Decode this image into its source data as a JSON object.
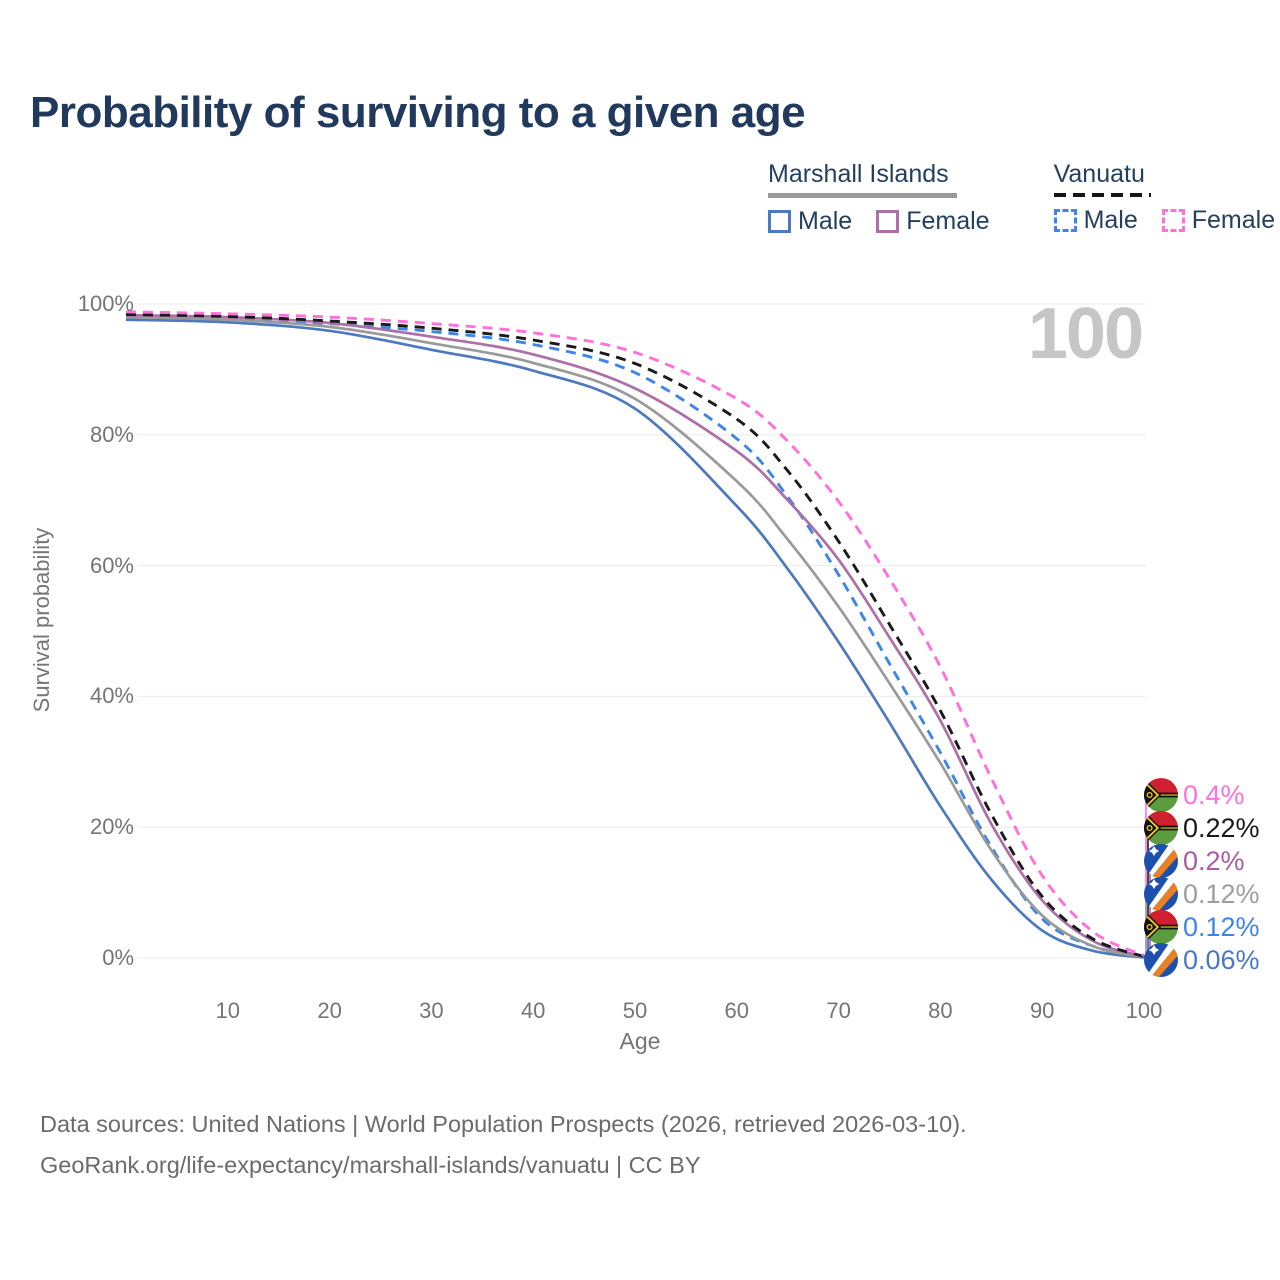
{
  "title": "Probability of surviving to a given age",
  "watermark": "100",
  "legend": {
    "groups": [
      {
        "label": "Marshall Islands",
        "line_style": "solid",
        "underline_color": "#9a9a9a",
        "items": [
          {
            "label": "Male",
            "color": "#4d79c0",
            "dashed": false
          },
          {
            "label": "Female",
            "color": "#ac6fa6",
            "dashed": false
          }
        ]
      },
      {
        "label": "Vanuatu",
        "line_style": "dashed",
        "underline_color": "#151515",
        "items": [
          {
            "label": "Male",
            "color": "#3c86ea",
            "dashed": true
          },
          {
            "label": "Female",
            "color": "#ff70dd",
            "dashed": true
          }
        ]
      }
    ]
  },
  "y_axis": {
    "label": "Survival probability",
    "ticks": [
      {
        "value": 0,
        "label": "0%"
      },
      {
        "value": 20,
        "label": "20%"
      },
      {
        "value": 40,
        "label": "40%"
      },
      {
        "value": 60,
        "label": "60%"
      },
      {
        "value": 80,
        "label": "80%"
      },
      {
        "value": 100,
        "label": "100%"
      }
    ]
  },
  "x_axis": {
    "label": "Age",
    "ticks": [
      {
        "value": 10,
        "label": "10"
      },
      {
        "value": 20,
        "label": "20"
      },
      {
        "value": 30,
        "label": "30"
      },
      {
        "value": 40,
        "label": "40"
      },
      {
        "value": 50,
        "label": "50"
      },
      {
        "value": 60,
        "label": "60"
      },
      {
        "value": 70,
        "label": "70"
      },
      {
        "value": 80,
        "label": "80"
      },
      {
        "value": 90,
        "label": "90"
      },
      {
        "value": 100,
        "label": "100"
      }
    ]
  },
  "end_labels": [
    {
      "value": "0.4%",
      "flag": "vanuatu",
      "color": "#ff70dd"
    },
    {
      "value": "0.22%",
      "flag": "vanuatu",
      "color": "#1a1a1a"
    },
    {
      "value": "0.2%",
      "flag": "marshall-islands",
      "color": "#ab5ba1"
    },
    {
      "value": "0.12%",
      "flag": "marshall-islands",
      "color": "#9e9e9e"
    },
    {
      "value": "0.12%",
      "flag": "vanuatu",
      "color": "#3c86ea"
    },
    {
      "value": "0.06%",
      "flag": "marshall-islands",
      "color": "#4a77c8"
    }
  ],
  "footer": {
    "line1": "Data sources: United Nations | World Population Prospects (2026, retrieved 2026-03-10).",
    "line2": "GeoRank.org/life-expectancy/marshall-islands/vanuatu | CC BY"
  },
  "chart_data": {
    "type": "line",
    "title": "Probability of surviving to a given age",
    "xlabel": "Age",
    "ylabel": "Survival probability",
    "xlim": [
      0,
      100
    ],
    "ylim": [
      0,
      100
    ],
    "grid": true,
    "legend_position": "top-right",
    "x": [
      0,
      10,
      20,
      30,
      40,
      50,
      60,
      65,
      70,
      75,
      80,
      85,
      90,
      95,
      100
    ],
    "series": [
      {
        "name": "Vanuatu Female",
        "color": "#ff70dd",
        "dashed": true,
        "end_label": "0.4%",
        "values": [
          98.8,
          98.5,
          98.0,
          97.0,
          95.6,
          92.6,
          85.5,
          79.0,
          69.8,
          58.0,
          44.5,
          27.5,
          12.6,
          4.0,
          0.4
        ]
      },
      {
        "name": "Vanuatu Both sexes",
        "color": "#1a1a1a",
        "dashed": true,
        "end_label": "0.22%",
        "values": [
          98.4,
          98.1,
          97.4,
          96.3,
          94.5,
          90.9,
          82.4,
          74.5,
          63.7,
          51.0,
          37.8,
          22.0,
          9.4,
          2.9,
          0.22
        ]
      },
      {
        "name": "Marshall Islands Female",
        "color": "#ac6fa6",
        "dashed": false,
        "end_label": "0.2%",
        "values": [
          98.3,
          98.0,
          97.1,
          95.0,
          92.3,
          87.1,
          77.5,
          70.0,
          60.9,
          49.0,
          36.3,
          20.5,
          8.8,
          2.6,
          0.2
        ]
      },
      {
        "name": "Marshall Islands Both sexes",
        "color": "#9a9a9a",
        "dashed": false,
        "end_label": "0.12%",
        "values": [
          98.0,
          97.6,
          96.5,
          94.0,
          91.0,
          85.5,
          72.9,
          64.0,
          53.7,
          42.0,
          29.8,
          16.5,
          6.5,
          1.8,
          0.12
        ]
      },
      {
        "name": "Vanuatu Male",
        "color": "#3c86ea",
        "dashed": true,
        "end_label": "0.12%",
        "values": [
          98.1,
          97.8,
          97.0,
          95.8,
          93.8,
          89.5,
          79.4,
          70.5,
          58.6,
          45.0,
          31.4,
          17.0,
          6.0,
          1.8,
          0.12
        ]
      },
      {
        "name": "Marshall Islands Male",
        "color": "#4d79c0",
        "dashed": false,
        "end_label": "0.06%",
        "values": [
          97.6,
          97.2,
          95.9,
          93.0,
          89.8,
          84.0,
          69.1,
          59.5,
          48.3,
          36.0,
          23.2,
          12.0,
          4.2,
          1.1,
          0.06
        ]
      }
    ]
  }
}
